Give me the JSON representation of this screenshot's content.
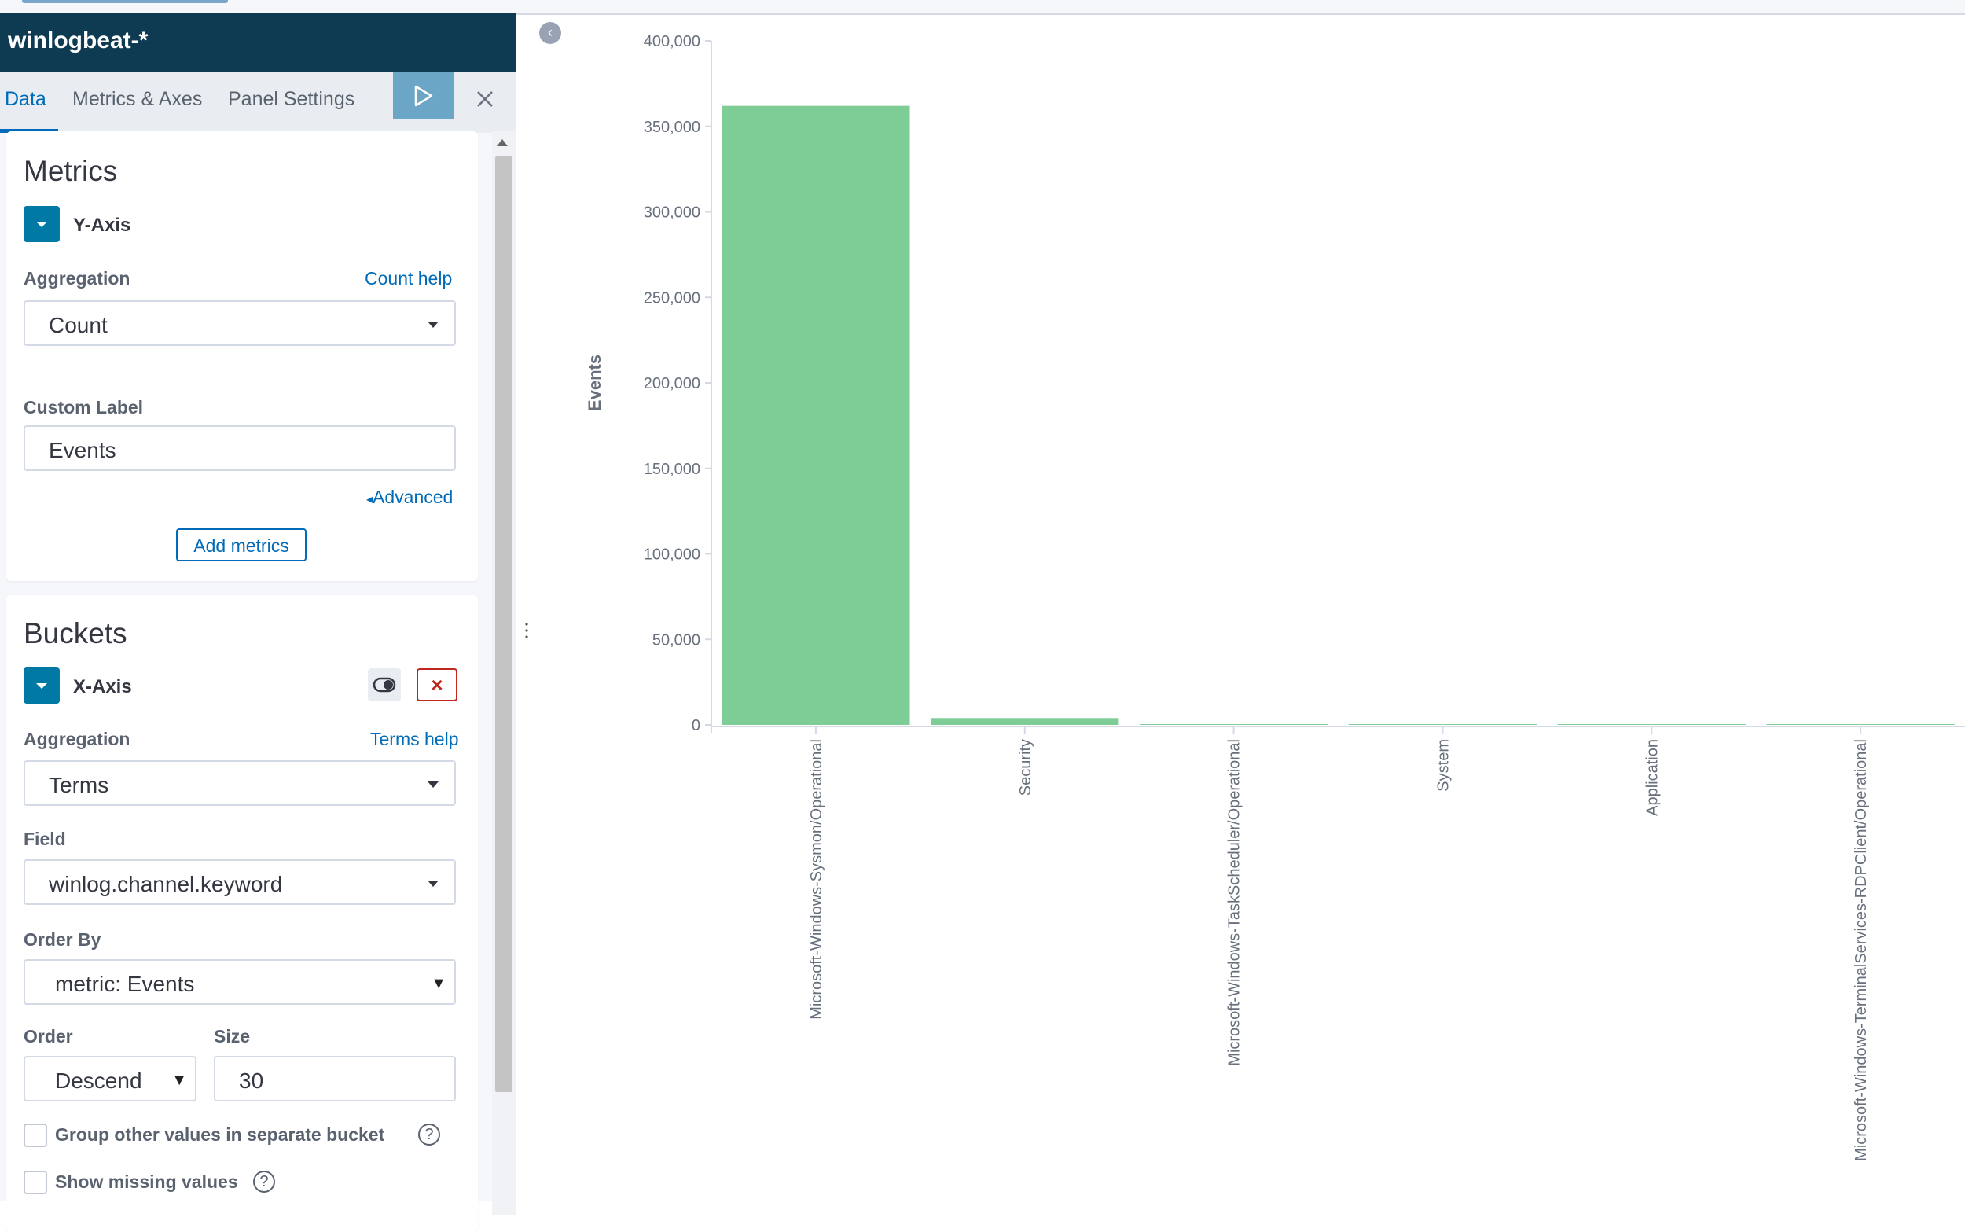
{
  "editor": {
    "index_pattern": "winlogbeat-*",
    "tabs": [
      "Data",
      "Metrics & Axes",
      "Panel Settings"
    ],
    "metrics": {
      "title": "Metrics",
      "agg_type": "Y-Axis",
      "aggregation_label": "Aggregation",
      "aggregation_help": "Count help",
      "aggregation_value": "Count",
      "custom_label_label": "Custom Label",
      "custom_label_value": "Events",
      "advanced_link": "Advanced",
      "add_button": "Add metrics"
    },
    "buckets": {
      "title": "Buckets",
      "agg_type": "X-Axis",
      "aggregation_label": "Aggregation",
      "aggregation_help": "Terms help",
      "aggregation_value": "Terms",
      "field_label": "Field",
      "field_value": "winlog.channel.keyword",
      "order_by_label": "Order By",
      "order_by_value": "metric: Events",
      "order_label": "Order",
      "order_value": "Descend",
      "size_label": "Size",
      "size_value": "30",
      "group_other_label": "Group other values in separate bucket",
      "show_missing_label": "Show missing values",
      "help_glyph": "?"
    },
    "icons": {
      "apply": "play-icon",
      "close": "close-icon",
      "collapse": "chevron-left-icon",
      "visibility": "eye-toggle-icon",
      "remove": "x-icon"
    }
  },
  "chart_data": {
    "type": "bar",
    "title": "",
    "xlabel": "",
    "ylabel": "Events",
    "ylim": [
      0,
      400000
    ],
    "yticks": [
      "0",
      "50,000",
      "100,000",
      "150,000",
      "200,000",
      "250,000",
      "300,000",
      "350,000",
      "400,000"
    ],
    "categories": [
      "Microsoft-Windows-Sysmon/Operational",
      "Security",
      "Microsoft-Windows-TaskScheduler/Operational",
      "System",
      "Application",
      "Microsoft-Windows-TerminalServices-RDPClient/Operational"
    ],
    "values": [
      362000,
      4000,
      200,
      150,
      100,
      50
    ],
    "bar_color": "#7ecc96",
    "grid": false
  }
}
